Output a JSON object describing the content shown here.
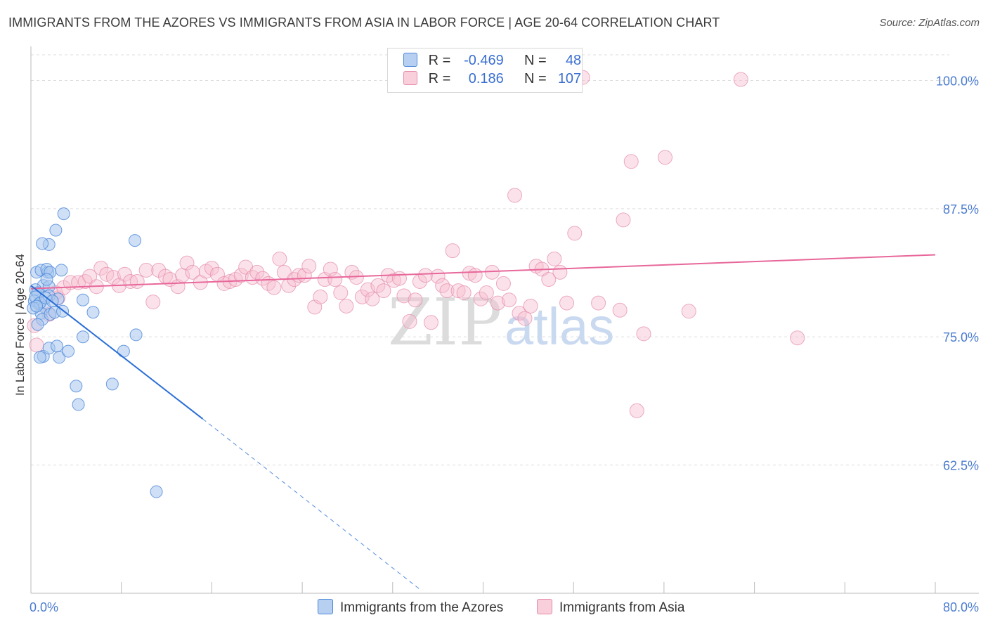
{
  "header": {
    "title": "IMMIGRANTS FROM THE AZORES VS IMMIGRANTS FROM ASIA IN LABOR FORCE | AGE 20-64 CORRELATION CHART",
    "source": "Source: ZipAtlas.com"
  },
  "watermark": {
    "zip": "ZIP",
    "atlas": "atlas"
  },
  "legend": {
    "r_label": "R =",
    "n_label": "N =",
    "azores": {
      "r": "-0.469",
      "n": "48"
    },
    "asia": {
      "r": "0.186",
      "n": "107"
    }
  },
  "colors": {
    "azores_fill": "#a8c6ee",
    "azores_stroke": "#4a86d8",
    "azores_line": "#2a6fd6",
    "asia_fill": "#f7bfd0",
    "asia_stroke": "#e48aa8",
    "asia_line": "#e8679a",
    "tick_text": "#4a7bd0",
    "grid": "#dddddd"
  },
  "chart_data": {
    "type": "scatter",
    "title": "IMMIGRANTS FROM THE AZORES VS IMMIGRANTS FROM ASIA IN LABOR FORCE | AGE 20-64 CORRELATION CHART",
    "xlabel": "",
    "ylabel": "In Labor Force | Age 20-64",
    "xlim": [
      0,
      80
    ],
    "ylim": [
      50,
      102.5
    ],
    "x_tick_labels": [
      "0.0%",
      "80.0%"
    ],
    "y_ticks": [
      {
        "value": 62.5,
        "label": "62.5%"
      },
      {
        "value": 75.0,
        "label": "75.0%"
      },
      {
        "value": 87.5,
        "label": "87.5%"
      },
      {
        "value": 100.0,
        "label": "100.0%"
      }
    ],
    "legend_entries": [
      "Immigrants from the Azores",
      "Immigrants from Asia"
    ],
    "series": [
      {
        "name": "Immigrants from the Azores",
        "r": -0.469,
        "n": 48,
        "trend": {
          "x": [
            0,
            15.2
          ],
          "y": [
            80.0,
            67.0
          ],
          "dashed_to": [
            34.5,
            50.3
          ]
        },
        "points": [
          [
            0.5,
            81.3
          ],
          [
            0.9,
            81.5
          ],
          [
            1.1,
            80.0
          ],
          [
            0.4,
            79.6
          ],
          [
            0.6,
            79.3
          ],
          [
            0.3,
            78.5
          ],
          [
            0.7,
            78.2
          ],
          [
            1.2,
            77.9
          ],
          [
            0.9,
            77.3
          ],
          [
            1.0,
            76.7
          ],
          [
            0.6,
            76.2
          ],
          [
            1.6,
            79.9
          ],
          [
            1.5,
            81.3
          ],
          [
            1.4,
            81.6
          ],
          [
            1.7,
            81.3
          ],
          [
            1.4,
            80.6
          ],
          [
            1.6,
            79.0
          ],
          [
            1.7,
            77.2
          ],
          [
            2.1,
            77.4
          ],
          [
            2.4,
            78.7
          ],
          [
            2.8,
            77.5
          ],
          [
            2.7,
            81.5
          ],
          [
            1.6,
            84.0
          ],
          [
            1.0,
            84.1
          ],
          [
            2.2,
            85.4
          ],
          [
            2.9,
            87.0
          ],
          [
            1.1,
            73.1
          ],
          [
            0.8,
            73.0
          ],
          [
            1.6,
            73.9
          ],
          [
            2.3,
            74.1
          ],
          [
            2.5,
            73.0
          ],
          [
            3.3,
            73.6
          ],
          [
            4.6,
            78.6
          ],
          [
            5.5,
            77.4
          ],
          [
            4.6,
            75.0
          ],
          [
            8.2,
            73.6
          ],
          [
            9.3,
            75.2
          ],
          [
            9.2,
            84.4
          ],
          [
            4.0,
            70.2
          ],
          [
            4.2,
            68.4
          ],
          [
            7.2,
            70.4
          ],
          [
            11.1,
            59.9
          ],
          [
            0.4,
            78.9
          ],
          [
            0.8,
            78.3
          ],
          [
            1.3,
            78.8
          ],
          [
            1.9,
            78.5
          ],
          [
            0.2,
            77.8
          ],
          [
            0.5,
            78.0
          ]
        ]
      },
      {
        "name": "Immigrants from Asia",
        "r": 0.186,
        "n": 107,
        "trend": {
          "x": [
            0,
            80
          ],
          "y": [
            79.7,
            83.0
          ]
        },
        "points": [
          [
            0.3,
            76.1
          ],
          [
            0.5,
            74.2
          ],
          [
            1.6,
            77.2
          ],
          [
            2.4,
            78.8
          ],
          [
            2.2,
            79.3
          ],
          [
            2.9,
            79.8
          ],
          [
            3.5,
            80.3
          ],
          [
            4.2,
            80.3
          ],
          [
            4.8,
            80.4
          ],
          [
            5.2,
            80.9
          ],
          [
            5.8,
            79.9
          ],
          [
            6.2,
            81.7
          ],
          [
            6.7,
            81.1
          ],
          [
            7.3,
            80.8
          ],
          [
            7.8,
            80.0
          ],
          [
            8.3,
            81.1
          ],
          [
            8.8,
            80.4
          ],
          [
            9.4,
            80.4
          ],
          [
            10.2,
            81.5
          ],
          [
            10.8,
            78.4
          ],
          [
            11.3,
            81.5
          ],
          [
            11.9,
            80.9
          ],
          [
            12.3,
            80.6
          ],
          [
            13.0,
            79.9
          ],
          [
            13.4,
            81.0
          ],
          [
            13.8,
            82.2
          ],
          [
            14.3,
            81.3
          ],
          [
            15.0,
            80.3
          ],
          [
            15.5,
            81.4
          ],
          [
            16.0,
            81.7
          ],
          [
            16.5,
            81.1
          ],
          [
            17.1,
            80.2
          ],
          [
            17.6,
            80.4
          ],
          [
            18.1,
            80.6
          ],
          [
            18.6,
            81.0
          ],
          [
            19.0,
            81.8
          ],
          [
            19.6,
            80.8
          ],
          [
            20.0,
            81.3
          ],
          [
            20.5,
            80.7
          ],
          [
            21.0,
            80.2
          ],
          [
            21.5,
            79.8
          ],
          [
            22.0,
            82.6
          ],
          [
            22.4,
            81.3
          ],
          [
            22.8,
            80.0
          ],
          [
            23.3,
            80.6
          ],
          [
            23.7,
            81.0
          ],
          [
            24.2,
            81.0
          ],
          [
            24.6,
            81.9
          ],
          [
            25.1,
            77.9
          ],
          [
            25.6,
            78.9
          ],
          [
            26.0,
            80.6
          ],
          [
            26.5,
            81.6
          ],
          [
            26.9,
            80.6
          ],
          [
            27.4,
            79.3
          ],
          [
            27.9,
            78.0
          ],
          [
            28.4,
            81.3
          ],
          [
            28.8,
            80.8
          ],
          [
            29.3,
            78.9
          ],
          [
            29.8,
            79.6
          ],
          [
            30.2,
            78.7
          ],
          [
            30.7,
            80.0
          ],
          [
            31.2,
            79.5
          ],
          [
            31.6,
            81.0
          ],
          [
            32.1,
            80.5
          ],
          [
            32.6,
            80.7
          ],
          [
            33.0,
            79.0
          ],
          [
            33.5,
            76.5
          ],
          [
            34.0,
            78.6
          ],
          [
            34.4,
            80.4
          ],
          [
            34.9,
            81.0
          ],
          [
            35.4,
            76.4
          ],
          [
            36.0,
            80.9
          ],
          [
            36.4,
            80.0
          ],
          [
            36.8,
            79.5
          ],
          [
            37.3,
            83.4
          ],
          [
            37.8,
            79.5
          ],
          [
            38.3,
            79.3
          ],
          [
            38.8,
            81.2
          ],
          [
            39.3,
            81.0
          ],
          [
            39.8,
            78.7
          ],
          [
            40.3,
            79.3
          ],
          [
            40.8,
            81.3
          ],
          [
            41.3,
            78.3
          ],
          [
            41.8,
            80.2
          ],
          [
            42.3,
            78.6
          ],
          [
            42.8,
            88.8
          ],
          [
            43.2,
            77.3
          ],
          [
            43.7,
            76.8
          ],
          [
            44.2,
            78.0
          ],
          [
            44.7,
            81.9
          ],
          [
            45.2,
            81.6
          ],
          [
            45.8,
            80.6
          ],
          [
            46.3,
            82.6
          ],
          [
            46.8,
            81.3
          ],
          [
            47.4,
            78.3
          ],
          [
            48.1,
            85.1
          ],
          [
            48.8,
            100.3
          ],
          [
            50.2,
            78.3
          ],
          [
            52.1,
            77.6
          ],
          [
            52.4,
            86.4
          ],
          [
            53.1,
            92.1
          ],
          [
            53.6,
            67.8
          ],
          [
            54.2,
            75.3
          ],
          [
            56.1,
            92.5
          ],
          [
            58.2,
            77.5
          ],
          [
            62.8,
            100.1
          ],
          [
            67.8,
            74.9
          ]
        ]
      }
    ]
  },
  "bottom_legend": {
    "azores_label": "Immigrants from the Azores",
    "asia_label": "Immigrants from Asia"
  }
}
